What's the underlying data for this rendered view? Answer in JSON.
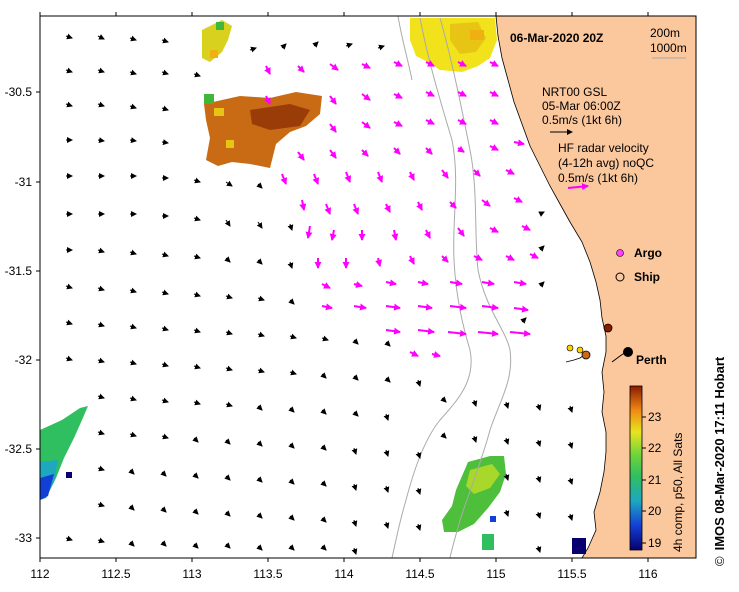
{
  "header": {
    "datetime": "06-Mar-2020 20Z"
  },
  "depth_contours": {
    "shallow": "200m",
    "deep": "1000m"
  },
  "legend": {
    "gsl_source": "NRT00 GSL",
    "gsl_time": "05-Mar 06:00Z",
    "gsl_scale": "0.5m/s (1kt 6h)",
    "radar_title": "HF radar velocity",
    "radar_qualifier": "(4-12h avg) noQC",
    "radar_scale": "0.5m/s (1kt 6h)",
    "argo_label": "Argo",
    "ship_label": "Ship"
  },
  "place_labels": {
    "perth": "Perth"
  },
  "x_axis": {
    "ticks": [
      "112",
      "112.5",
      "113",
      "113.5",
      "114",
      "114.5",
      "115",
      "115.5",
      "116"
    ]
  },
  "y_axis": {
    "ticks": [
      "-30.5",
      "-31",
      "-31.5",
      "-32",
      "-32.5",
      "-33"
    ]
  },
  "colorbar": {
    "title": "4h comp, p50, All Sats",
    "ticks": [
      "19",
      "20",
      "21",
      "22",
      "23"
    ]
  },
  "credit": {
    "symbol": "©",
    "text": "IMOS 08-Mar-2020 17:11 Hobart"
  },
  "colors": {
    "land": "#fbc79d",
    "sst_warm": "#c96a14",
    "sst_yellow": "#f2e21c",
    "sst_green": "#4ebf3a",
    "sst_blue": "#1a3fd6",
    "radar_vector": "#ff00ff",
    "gsl_vector": "#000000",
    "depth_contour": "#aaaaaa"
  }
}
